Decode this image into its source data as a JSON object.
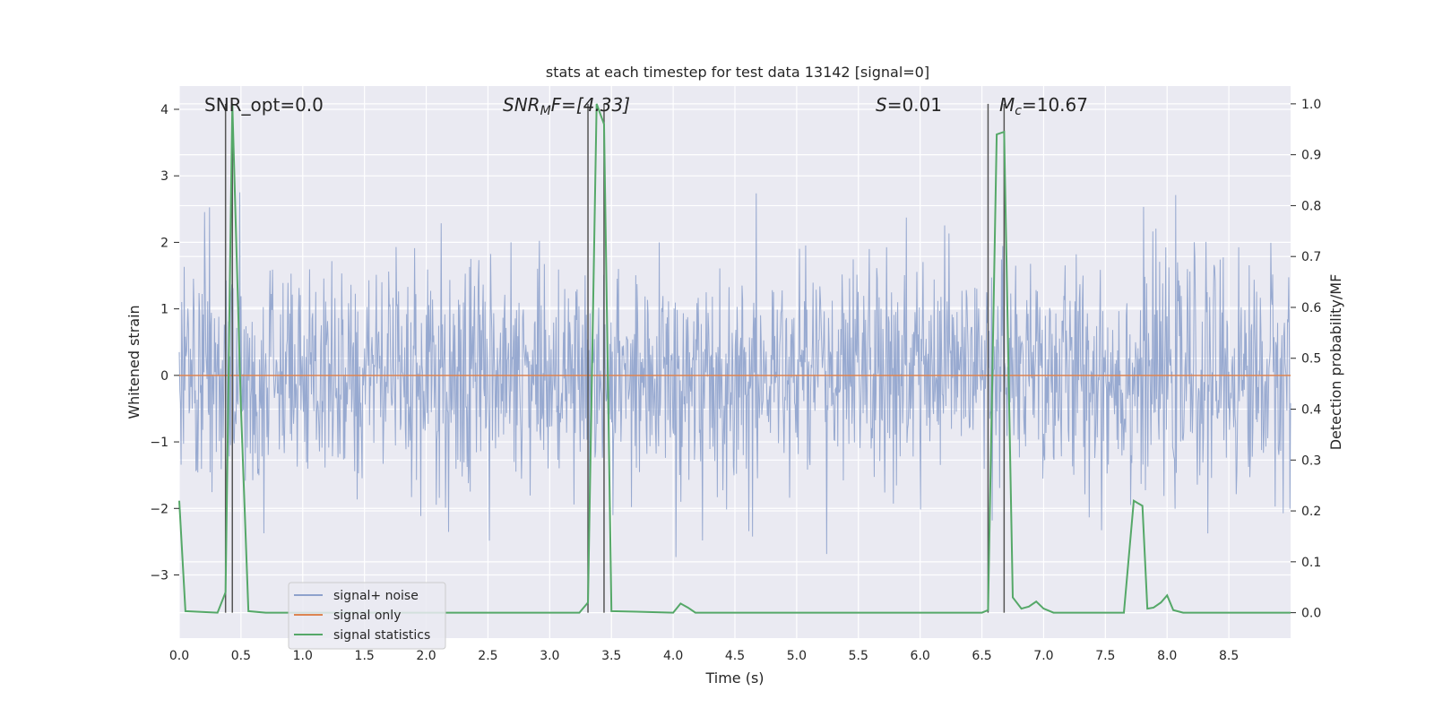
{
  "chart_data": {
    "type": "line",
    "title": "stats at each timestep for test data 13142 [signal=0]",
    "xlabel": "Time (s)",
    "ylabel": "Whitened strain",
    "ylabel_right": "Detection probability/MF",
    "xlim": [
      0.0,
      9.0
    ],
    "ylim": [
      -3.95,
      4.35
    ],
    "ylim_right": [
      -0.05,
      1.035
    ],
    "xticks": [
      0.0,
      0.5,
      1.0,
      1.5,
      2.0,
      2.5,
      3.0,
      3.5,
      4.0,
      4.5,
      5.0,
      5.5,
      6.0,
      6.5,
      7.0,
      7.5,
      8.0,
      8.5
    ],
    "xtick_labels": [
      "0.0",
      "0.5",
      "1.0",
      "1.5",
      "2.0",
      "2.5",
      "3.0",
      "3.5",
      "4.0",
      "4.5",
      "5.0",
      "5.5",
      "6.0",
      "6.5",
      "7.0",
      "7.5",
      "8.0",
      "8.5"
    ],
    "yticks": [
      4,
      3,
      2,
      1,
      0,
      -1,
      -2,
      -3
    ],
    "ytick_labels": [
      "4",
      "3",
      "2",
      "1",
      "0",
      "−1",
      "−2",
      "−3"
    ],
    "yticks_right": [
      1.0,
      0.9,
      0.8,
      0.7,
      0.6,
      0.5,
      0.4,
      0.3,
      0.2,
      0.1,
      0.0
    ],
    "ytick_labels_right": [
      "1.0",
      "0.9",
      "0.8",
      "0.7",
      "0.6",
      "0.5",
      "0.4",
      "0.3",
      "0.2",
      "0.1",
      "0.0"
    ],
    "annotations": {
      "snr_opt": "SNR_opt=0.0",
      "snr_mf_main": "SNR",
      "snr_mf_sub": "M",
      "snr_mf_rest": "F=[4.33]",
      "s_italic": "S",
      "s_rest": "=0.01",
      "mc_main": "M",
      "mc_sub": "c",
      "mc_rest": "=10.67"
    },
    "vlines_x": [
      0.375,
      0.43,
      3.31,
      3.44,
      6.55,
      6.68
    ],
    "legend": {
      "location": "lower-left",
      "entries": [
        "signal+ noise",
        "signal only",
        "signal statistics"
      ]
    },
    "series": [
      {
        "name": "signal+ noise",
        "axis": "left",
        "color": "#8ea2cc",
        "kind": "noise",
        "std": 0.85,
        "amplitude_range": [
          -3.5,
          3.4
        ],
        "samples": 1800
      },
      {
        "name": "signal only",
        "axis": "left",
        "color": "#dd8452",
        "x": [
          0.0,
          9.0
        ],
        "y": [
          0.0,
          0.0
        ]
      },
      {
        "name": "signal statistics",
        "axis": "right",
        "color": "#55a868",
        "x": [
          0.0,
          0.05,
          0.31,
          0.375,
          0.43,
          0.5,
          0.56,
          0.7,
          3.24,
          3.31,
          3.38,
          3.44,
          3.5,
          3.7,
          4.0,
          4.06,
          4.12,
          4.18,
          6.5,
          6.55,
          6.62,
          6.68,
          6.75,
          6.82,
          6.88,
          6.94,
          7.0,
          7.08,
          7.65,
          7.73,
          7.8,
          7.84,
          7.89,
          7.95,
          8.0,
          8.05,
          8.13,
          9.0
        ],
        "y": [
          0.22,
          0.003,
          0.0,
          0.04,
          1.0,
          0.4,
          0.003,
          0.0,
          0.0,
          0.02,
          1.0,
          0.96,
          0.003,
          0.002,
          0.0,
          0.018,
          0.01,
          0.0,
          0.0,
          0.005,
          0.94,
          0.945,
          0.03,
          0.008,
          0.012,
          0.022,
          0.008,
          0.0,
          0.0,
          0.22,
          0.21,
          0.008,
          0.01,
          0.02,
          0.034,
          0.005,
          0.0,
          0.0
        ]
      }
    ]
  }
}
